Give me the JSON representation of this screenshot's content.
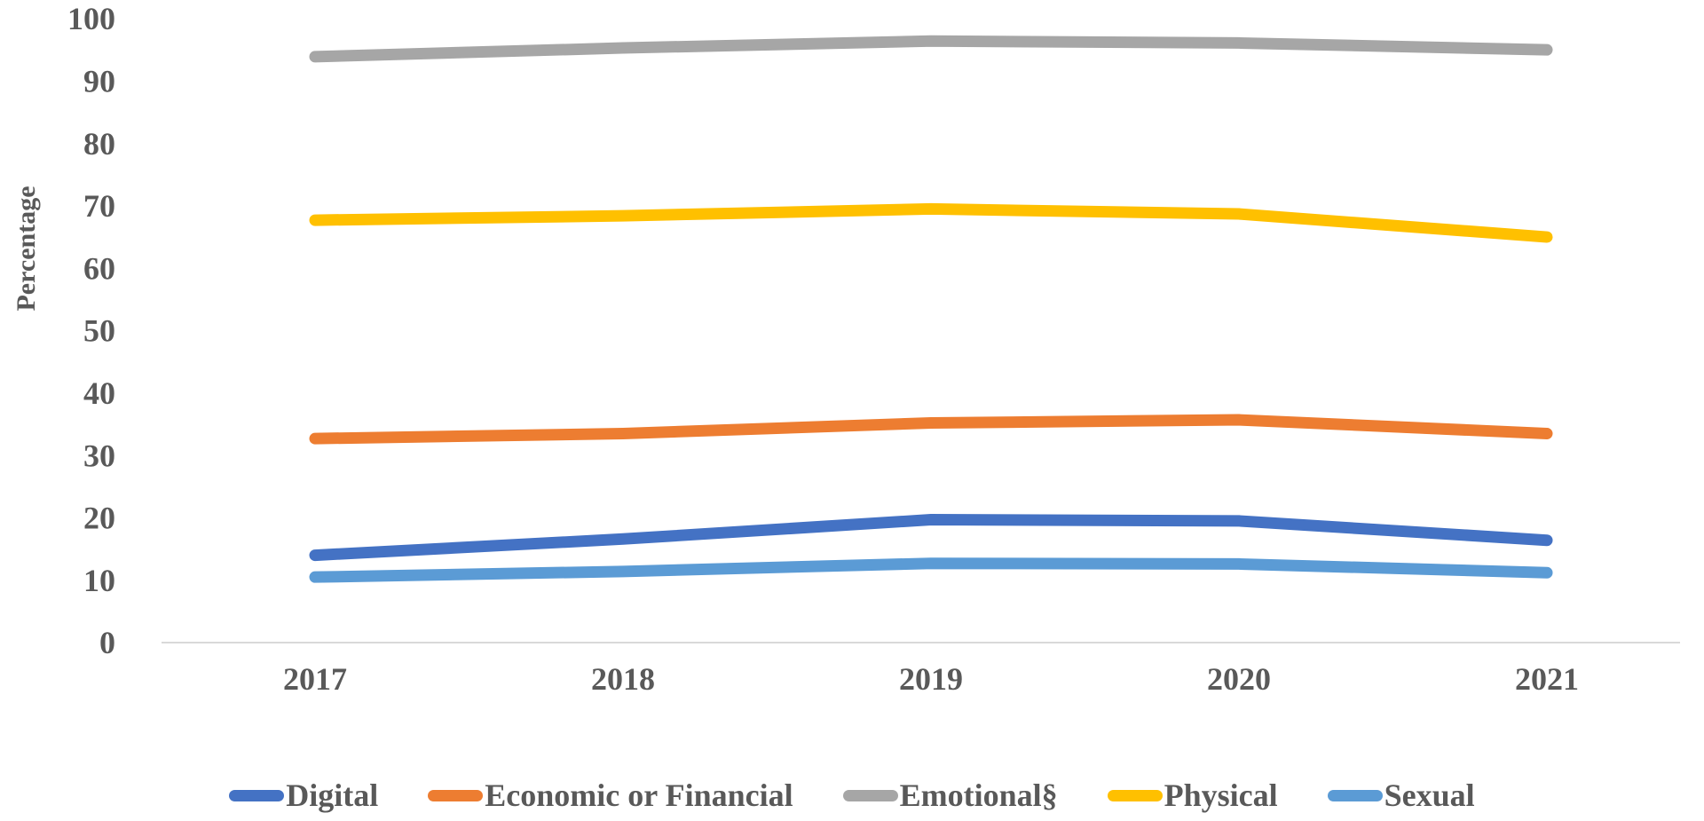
{
  "figure": {
    "background": "#ffffff",
    "axis_line_color": "#d9d9d9",
    "text_color": "#595959"
  },
  "chart_data": {
    "type": "line",
    "title": "",
    "xlabel": "",
    "ylabel": "Percentage",
    "categories": [
      "2017",
      "2018",
      "2019",
      "2020",
      "2021"
    ],
    "ylim": [
      0,
      100
    ],
    "ytick_step": 10,
    "grid": false,
    "legend_position": "bottom",
    "line_width": 13,
    "series": [
      {
        "name": "Digital",
        "color": "#4472C4",
        "values": [
          14.0,
          16.6,
          19.7,
          19.5,
          16.4
        ]
      },
      {
        "name": "Economic or Financial",
        "color": "#ED7D31",
        "values": [
          32.7,
          33.5,
          35.2,
          35.7,
          33.5
        ]
      },
      {
        "name": "Emotional§",
        "color": "#A6A6A6",
        "values": [
          93.9,
          95.3,
          96.4,
          96.1,
          95.0
        ]
      },
      {
        "name": "Physical",
        "color": "#FFC000",
        "values": [
          67.7,
          68.4,
          69.5,
          68.7,
          65.0
        ]
      },
      {
        "name": "Sexual",
        "color": "#5B9BD5",
        "values": [
          10.5,
          11.4,
          12.7,
          12.6,
          11.2
        ]
      }
    ]
  }
}
